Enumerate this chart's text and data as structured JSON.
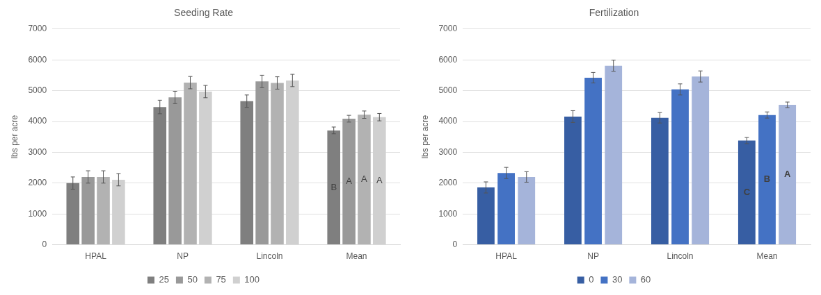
{
  "chart_data": [
    {
      "type": "bar",
      "title": "Seeding Rate",
      "ylabel": "lbs per acre",
      "categories": [
        "HPAL",
        "NP",
        "Lincoln",
        "Mean"
      ],
      "ylim": [
        0,
        7000
      ],
      "yticks": [
        0,
        1000,
        2000,
        3000,
        4000,
        5000,
        6000,
        7000
      ],
      "grid": "y",
      "legend": "bottom",
      "series": [
        {
          "name": "25",
          "color": "#7f7f7f",
          "values": [
            2000,
            4470,
            4660,
            3710
          ],
          "errors": [
            200,
            220,
            200,
            110
          ],
          "value_labels": [
            null,
            null,
            null,
            "B"
          ]
        },
        {
          "name": "50",
          "color": "#999999",
          "values": [
            2200,
            4780,
            5300,
            4090
          ],
          "errors": [
            200,
            200,
            200,
            110
          ],
          "value_labels": [
            null,
            null,
            null,
            "A"
          ]
        },
        {
          "name": "75",
          "color": "#b2b2b2",
          "values": [
            2200,
            5260,
            5250,
            4220
          ],
          "errors": [
            200,
            200,
            200,
            120
          ],
          "value_labels": [
            null,
            null,
            null,
            "A"
          ]
        },
        {
          "name": "100",
          "color": "#d0d0d0",
          "values": [
            2110,
            4970,
            5330,
            4140
          ],
          "errors": [
            200,
            200,
            200,
            120
          ],
          "value_labels": [
            null,
            null,
            null,
            "A"
          ]
        }
      ]
    },
    {
      "type": "bar",
      "title": "Fertilization",
      "ylabel": "lbs per acre",
      "categories": [
        "HPAL",
        "NP",
        "Lincoln",
        "Mean"
      ],
      "ylim": [
        0,
        7000
      ],
      "yticks": [
        0,
        1000,
        2000,
        3000,
        4000,
        5000,
        6000,
        7000
      ],
      "grid": "y",
      "legend": "bottom",
      "series": [
        {
          "name": "0",
          "color": "#375ea3",
          "values": [
            1860,
            4160,
            4120,
            3380
          ],
          "errors": [
            180,
            190,
            170,
            100
          ],
          "value_labels": [
            null,
            null,
            null,
            "C"
          ]
        },
        {
          "name": "30",
          "color": "#4472c4",
          "values": [
            2330,
            5420,
            5040,
            4210
          ],
          "errors": [
            180,
            170,
            180,
            100
          ],
          "value_labels": [
            null,
            null,
            null,
            "B"
          ]
        },
        {
          "name": "60",
          "color": "#a5b4da",
          "values": [
            2200,
            5810,
            5460,
            4540
          ],
          "errors": [
            170,
            180,
            180,
            90
          ],
          "value_labels": [
            null,
            null,
            null,
            "A"
          ]
        }
      ]
    }
  ]
}
